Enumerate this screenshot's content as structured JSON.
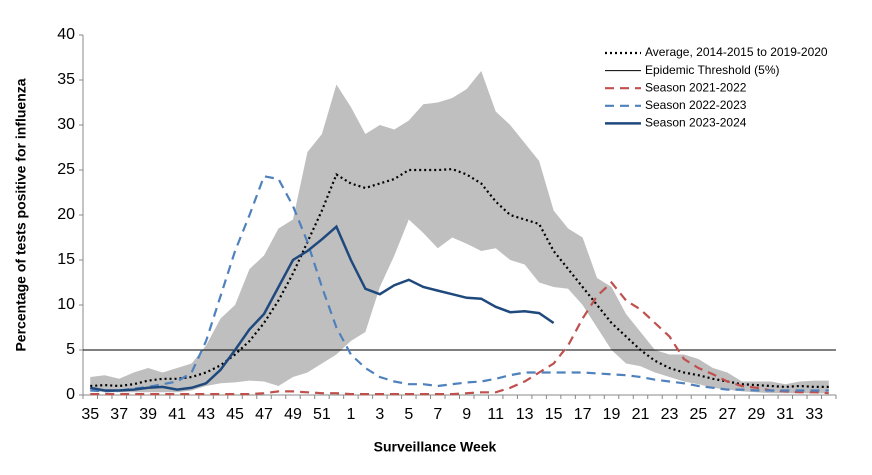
{
  "chart_data": {
    "type": "line",
    "x_label": "Surveillance  Week",
    "y_label": "Percentage of tests positive  for influenza",
    "categories": [
      "35",
      null,
      "37",
      null,
      "39",
      null,
      "41",
      null,
      "43",
      null,
      "45",
      null,
      "47",
      null,
      "49",
      null,
      "51",
      null,
      "1",
      null,
      "3",
      null,
      "5",
      null,
      "7",
      null,
      "9",
      null,
      "11",
      null,
      "13",
      null,
      "15",
      null,
      "17",
      null,
      "19",
      null,
      "21",
      null,
      "23",
      null,
      "25",
      null,
      "27",
      null,
      "29",
      null,
      "31",
      null,
      "33",
      null
    ],
    "ylim": [
      0,
      40
    ],
    "yticks": [
      0,
      5,
      10,
      15,
      20,
      25,
      30,
      35,
      40
    ],
    "grid": false,
    "legend": "top-right",
    "band": {
      "color": "#bfbfbf",
      "high": [
        2,
        2.2,
        1.8,
        2.5,
        3,
        2.5,
        3,
        3.5,
        5.5,
        8.5,
        10,
        14,
        15.5,
        18.5,
        19.5,
        27,
        29,
        34.5,
        32,
        29,
        30,
        29.5,
        30.5,
        32.3,
        32.5,
        33,
        34,
        36,
        31.5,
        30,
        28,
        26,
        20.5,
        18.5,
        17.5,
        13,
        12,
        9,
        7,
        5,
        4.5,
        4.5,
        4,
        3,
        2.5,
        1.5,
        1.5,
        1.5,
        1.2,
        1.5,
        1.6,
        1.6
      ],
      "low": [
        0.5,
        0.3,
        0.3,
        0.3,
        0.3,
        0.3,
        0.3,
        0.5,
        1.0,
        1.3,
        1.4,
        1.6,
        1.5,
        1.0,
        2.0,
        2.5,
        3.5,
        4.5,
        6,
        7,
        12,
        15.5,
        19.5,
        18,
        16.3,
        17.5,
        16.8,
        16,
        16.3,
        15,
        14.5,
        12.5,
        12,
        11.8,
        10,
        7.5,
        5,
        3.5,
        3.2,
        2.5,
        2,
        1.5,
        1.2,
        0.8,
        0.6,
        0.4,
        0.3,
        0.2,
        0.2,
        0.2,
        0.2,
        0.2
      ]
    },
    "threshold": {
      "name": "Epidemic Threshold (5%)",
      "value": 5,
      "color": "#000000"
    },
    "series": [
      {
        "name": "Average, 2014-2015 to 2019-2020",
        "color": "#000000",
        "dash": "dotted",
        "values": [
          1.0,
          1.1,
          1.0,
          1.2,
          1.6,
          1.8,
          1.8,
          2.0,
          2.5,
          3.3,
          4.5,
          6.0,
          8.0,
          10.5,
          13.5,
          17,
          20.5,
          24.5,
          23.5,
          23,
          23.5,
          24,
          25,
          25,
          25,
          25.1,
          24.5,
          23.5,
          21.5,
          20,
          19.5,
          19,
          16,
          14,
          12,
          10,
          8,
          6.5,
          5,
          3.8,
          3,
          2.5,
          2.2,
          1.8,
          1.5,
          1.2,
          1.1,
          1.0,
          0.9,
          1.0,
          0.9,
          0.9
        ]
      },
      {
        "name": "Season 2021-2022",
        "color": "#c0504d",
        "dash": "dashed",
        "values": [
          0.1,
          0.1,
          0.1,
          0.1,
          0.1,
          0.1,
          0.1,
          0.1,
          0.1,
          0.1,
          0.1,
          0.1,
          0.2,
          0.4,
          0.4,
          0.3,
          0.2,
          0.2,
          0.1,
          0.1,
          0.1,
          0.1,
          0.1,
          0.1,
          0.1,
          0.1,
          0.2,
          0.3,
          0.3,
          0.8,
          1.5,
          2.5,
          3.5,
          5.5,
          8.5,
          11,
          12.5,
          10.5,
          9.5,
          8,
          6.5,
          4,
          3,
          2.3,
          1.5,
          1.0,
          0.8,
          0.5,
          0.4,
          0.3,
          0.3,
          0.2
        ]
      },
      {
        "name": "Season 2022-2023",
        "color": "#4f81bd",
        "dash": "dashed",
        "values": [
          0.5,
          0.4,
          0.5,
          0.7,
          0.9,
          1.2,
          1.5,
          2.5,
          6,
          11,
          16,
          20,
          24.3,
          24,
          21,
          17,
          12,
          7.5,
          4.5,
          3,
          2,
          1.5,
          1.2,
          1.2,
          1.0,
          1.2,
          1.4,
          1.5,
          1.8,
          2.2,
          2.5,
          2.5,
          2.5,
          2.5,
          2.5,
          2.4,
          2.3,
          2.2,
          2.0,
          1.7,
          1.5,
          1.3,
          1.0,
          0.8,
          0.6,
          0.6,
          0.5,
          0.5,
          0.5,
          0.5,
          0.5,
          0.5
        ]
      },
      {
        "name": "Season 2023-2024",
        "color": "#1f497d",
        "dash": "solid",
        "values": [
          0.8,
          0.5,
          0.5,
          0.6,
          0.8,
          0.9,
          0.6,
          0.8,
          1.3,
          2.8,
          5,
          7.3,
          9,
          12,
          15,
          16,
          17.3,
          18.7,
          15,
          11.8,
          11.2,
          12.2,
          12.8,
          12,
          11.6,
          11.2,
          10.8,
          10.7,
          9.8,
          9.2,
          9.3,
          9.1,
          8,
          null,
          null,
          null,
          null,
          null,
          null,
          null,
          null,
          null,
          null,
          null,
          null,
          null,
          null,
          null,
          null,
          null,
          null,
          null
        ]
      }
    ]
  }
}
